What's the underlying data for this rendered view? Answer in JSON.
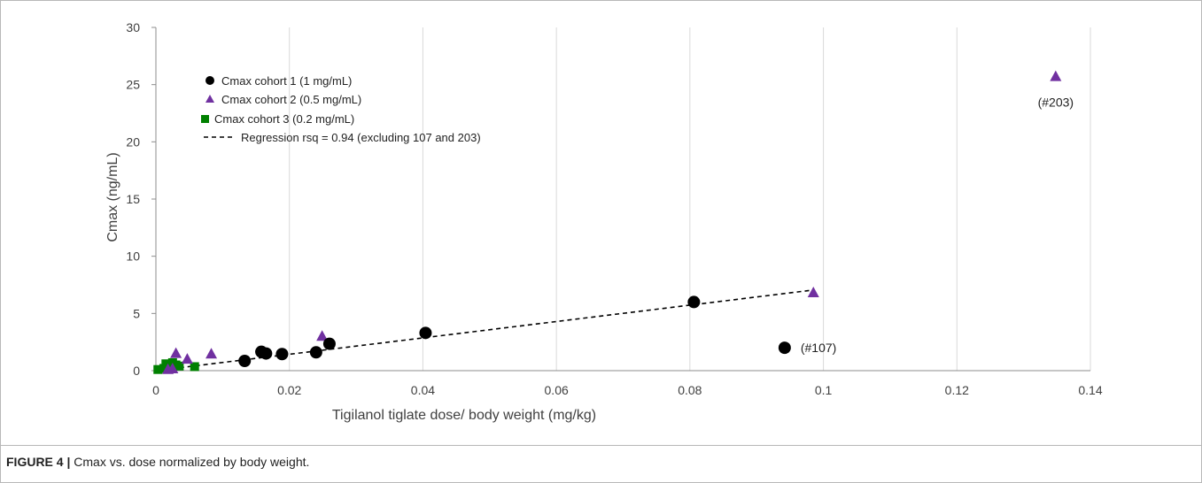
{
  "caption": {
    "label": "FIGURE 4 |",
    "text": "Cmax vs. dose normalized by body weight."
  },
  "chart_data": {
    "type": "scatter",
    "xlabel": "Tigilanol tiglate dose/ body weight (mg/kg)",
    "ylabel": "Cmax (ng/mL)",
    "xlim": [
      0,
      0.14
    ],
    "ylim": [
      0,
      30
    ],
    "x_ticks": [
      0,
      0.02,
      0.04,
      0.06,
      0.08,
      0.1,
      0.12,
      0.14
    ],
    "x_tick_labels": [
      "0",
      "0.02",
      "0.04",
      "0.06",
      "0.08",
      "0.1",
      "0.12",
      "0.14"
    ],
    "y_ticks": [
      0,
      5,
      10,
      15,
      20,
      25,
      30
    ],
    "y_tick_labels": [
      "0",
      "5",
      "10",
      "15",
      "20",
      "25",
      "30"
    ],
    "grid": "vertical gridlines",
    "legend_position": "top-left",
    "series": [
      {
        "name": "Cmax cohort 1 (1 mg/mL)",
        "marker": "circle",
        "color": "#000000",
        "points": [
          [
            0.0133,
            0.85
          ],
          [
            0.0158,
            1.65
          ],
          [
            0.0165,
            1.5
          ],
          [
            0.0189,
            1.45
          ],
          [
            0.024,
            1.6
          ],
          [
            0.026,
            2.35
          ],
          [
            0.0404,
            3.3
          ],
          [
            0.0806,
            6.0
          ],
          [
            0.0942,
            2.0
          ]
        ]
      },
      {
        "name": "Cmax cohort 2 (0.5 mg/mL)",
        "marker": "triangle",
        "color": "#7030a0",
        "points": [
          [
            0.0018,
            0.1
          ],
          [
            0.0025,
            0.15
          ],
          [
            0.003,
            1.5
          ],
          [
            0.0047,
            1.0
          ],
          [
            0.0083,
            1.45
          ],
          [
            0.0249,
            3.0
          ],
          [
            0.0985,
            6.8
          ],
          [
            0.1348,
            25.7
          ]
        ]
      },
      {
        "name": "Cmax cohort 3 (0.2 mg/mL)",
        "marker": "square",
        "color": "#008000",
        "points": [
          [
            0.0003,
            0.1
          ],
          [
            0.0012,
            0.2
          ],
          [
            0.0015,
            0.6
          ],
          [
            0.002,
            0.3
          ],
          [
            0.0025,
            0.7
          ],
          [
            0.003,
            0.5
          ],
          [
            0.0035,
            0.4
          ],
          [
            0.0058,
            0.35
          ]
        ]
      }
    ],
    "regression": {
      "name": "Regression rsq = 0.94 (excluding 107 and 203)",
      "style": "dashed",
      "color": "#000000",
      "points": [
        [
          0,
          0
        ],
        [
          0.0985,
          7.05
        ]
      ]
    },
    "annotations": [
      {
        "text": "(#107)",
        "x": 0.0942,
        "y": 2.0
      },
      {
        "text": "(#203)",
        "x": 0.1348,
        "y": 25.7
      }
    ]
  }
}
